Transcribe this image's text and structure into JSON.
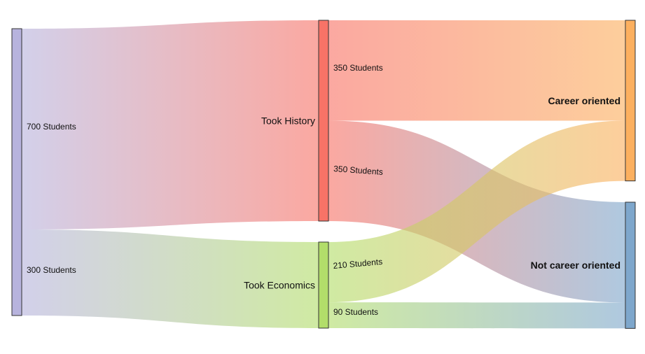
{
  "chart_data": {
    "type": "sankey",
    "nodes": [
      {
        "id": "all",
        "label": "",
        "color": "#b7b3dd"
      },
      {
        "id": "history",
        "label": "Took History",
        "color": "#f87367"
      },
      {
        "id": "economics",
        "label": "Took Economics",
        "color": "#b2dd6a"
      },
      {
        "id": "career",
        "label": "Career oriented",
        "color": "#fcb05f"
      },
      {
        "id": "notcareer",
        "label": "Not career oriented",
        "color": "#7ea7cc"
      }
    ],
    "links": [
      {
        "source": "all",
        "target": "history",
        "value": 700,
        "label": "700 Students"
      },
      {
        "source": "all",
        "target": "economics",
        "value": 300,
        "label": "300 Students"
      },
      {
        "source": "history",
        "target": "career",
        "value": 350,
        "label": "350 Students"
      },
      {
        "source": "history",
        "target": "notcareer",
        "value": 350,
        "label": "350 Students"
      },
      {
        "source": "economics",
        "target": "career",
        "value": 210,
        "label": "210 Students"
      },
      {
        "source": "economics",
        "target": "notcareer",
        "value": 90,
        "label": "90 Students"
      }
    ]
  }
}
